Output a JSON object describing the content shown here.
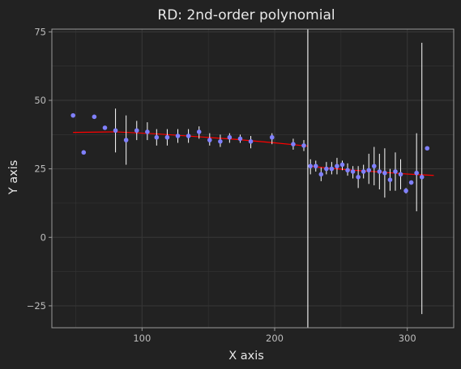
{
  "chart_data": {
    "type": "scatter",
    "title": "RD: 2nd-order polynomial",
    "xlabel": "X axis",
    "ylabel": "Y axis",
    "xlim": [
      32,
      335
    ],
    "ylim": [
      -33,
      76
    ],
    "x_ticks": [
      100,
      200,
      300
    ],
    "y_ticks": [
      -25,
      0,
      25,
      50,
      75
    ],
    "x_tick_labels": [
      "100",
      "200",
      "300"
    ],
    "y_tick_labels": [
      "−25",
      "0",
      "25",
      "50",
      "75"
    ],
    "grid": true,
    "cutoff": 225,
    "colors": {
      "background": "#222222",
      "panel_border": "#9a9a9a",
      "grid": "#353535",
      "points": "#8080ff",
      "errorbars": "#ffffff",
      "fit_line": "#ff0000",
      "cutoff_line": "#ffffff"
    },
    "points": [
      {
        "x": 48,
        "y": 44.5
      },
      {
        "x": 56,
        "y": 31
      },
      {
        "x": 64,
        "y": 44
      },
      {
        "x": 72,
        "y": 40
      },
      {
        "x": 80,
        "y": 39,
        "ymin": 31,
        "ymax": 47
      },
      {
        "x": 88,
        "y": 35.5,
        "ymin": 26.5,
        "ymax": 44.5
      },
      {
        "x": 96,
        "y": 39,
        "ymin": 35.5,
        "ymax": 42.5
      },
      {
        "x": 104,
        "y": 38.5,
        "ymin": 35.5,
        "ymax": 42
      },
      {
        "x": 111,
        "y": 36.5,
        "ymin": 33.5,
        "ymax": 39.5
      },
      {
        "x": 119,
        "y": 36.5,
        "ymin": 33.5,
        "ymax": 39.5
      },
      {
        "x": 127,
        "y": 37,
        "ymin": 34.5,
        "ymax": 39.5
      },
      {
        "x": 135,
        "y": 37,
        "ymin": 34.5,
        "ymax": 39.5
      },
      {
        "x": 143,
        "y": 38.5,
        "ymin": 36,
        "ymax": 40.5
      },
      {
        "x": 151,
        "y": 35.5,
        "ymin": 33.5,
        "ymax": 38
      },
      {
        "x": 159,
        "y": 35,
        "ymin": 33,
        "ymax": 37.5
      },
      {
        "x": 166,
        "y": 36.5,
        "ymin": 34.5,
        "ymax": 38
      },
      {
        "x": 174,
        "y": 36,
        "ymin": 34.5,
        "ymax": 37.5
      },
      {
        "x": 182,
        "y": 35,
        "ymin": 32.5,
        "ymax": 37
      },
      {
        "x": 198,
        "y": 36.5,
        "ymin": 34,
        "ymax": 38
      },
      {
        "x": 214,
        "y": 34,
        "ymin": 32,
        "ymax": 36
      },
      {
        "x": 222,
        "y": 33.5,
        "ymin": 31.5,
        "ymax": 35.5
      },
      {
        "x": 227,
        "y": 26,
        "ymin": 23,
        "ymax": 28.5
      },
      {
        "x": 231,
        "y": 26,
        "ymin": 24,
        "ymax": 28
      },
      {
        "x": 235,
        "y": 23,
        "ymin": 20.5,
        "ymax": 25.5
      },
      {
        "x": 239,
        "y": 25,
        "ymin": 23,
        "ymax": 27.5
      },
      {
        "x": 243,
        "y": 25,
        "ymin": 23,
        "ymax": 27.5
      },
      {
        "x": 247,
        "y": 26,
        "ymin": 23,
        "ymax": 29
      },
      {
        "x": 251,
        "y": 26.5,
        "ymin": 24.5,
        "ymax": 28
      },
      {
        "x": 255,
        "y": 24.5,
        "ymin": 22.5,
        "ymax": 27
      },
      {
        "x": 259,
        "y": 24,
        "ymin": 21.5,
        "ymax": 26
      },
      {
        "x": 263,
        "y": 22,
        "ymin": 18,
        "ymax": 26
      },
      {
        "x": 267,
        "y": 24,
        "ymin": 21.5,
        "ymax": 26.5
      },
      {
        "x": 271,
        "y": 24.5,
        "ymin": 19.5,
        "ymax": 30.5
      },
      {
        "x": 275,
        "y": 26,
        "ymin": 19,
        "ymax": 33
      },
      {
        "x": 279,
        "y": 24,
        "ymin": 17.5,
        "ymax": 30.5
      },
      {
        "x": 283,
        "y": 23.5,
        "ymin": 14.5,
        "ymax": 32.5
      },
      {
        "x": 287,
        "y": 21,
        "ymin": 17,
        "ymax": 25
      },
      {
        "x": 291,
        "y": 24,
        "ymin": 17,
        "ymax": 31
      },
      {
        "x": 295,
        "y": 23,
        "ymin": 17.5,
        "ymax": 28.5
      },
      {
        "x": 299,
        "y": 17,
        "ymin": 16,
        "ymax": 18
      },
      {
        "x": 303,
        "y": 20,
        "ymin": 19.5,
        "ymax": 20.5
      },
      {
        "x": 307,
        "y": 23.5,
        "ymin": 9.5,
        "ymax": 38
      },
      {
        "x": 311,
        "y": 22,
        "ymin": -28,
        "ymax": 71
      },
      {
        "x": 315,
        "y": 32.5
      }
    ],
    "fit_left": [
      [
        48,
        38.3
      ],
      [
        80,
        38.5
      ],
      [
        110,
        37.8
      ],
      [
        140,
        36.8
      ],
      [
        170,
        35.8
      ],
      [
        200,
        34.5
      ],
      [
        225,
        33.3
      ]
    ],
    "fit_right": [
      [
        225,
        26.0
      ],
      [
        240,
        25.3
      ],
      [
        260,
        24.5
      ],
      [
        280,
        23.8
      ],
      [
        300,
        23.1
      ],
      [
        320,
        22.6
      ]
    ]
  }
}
